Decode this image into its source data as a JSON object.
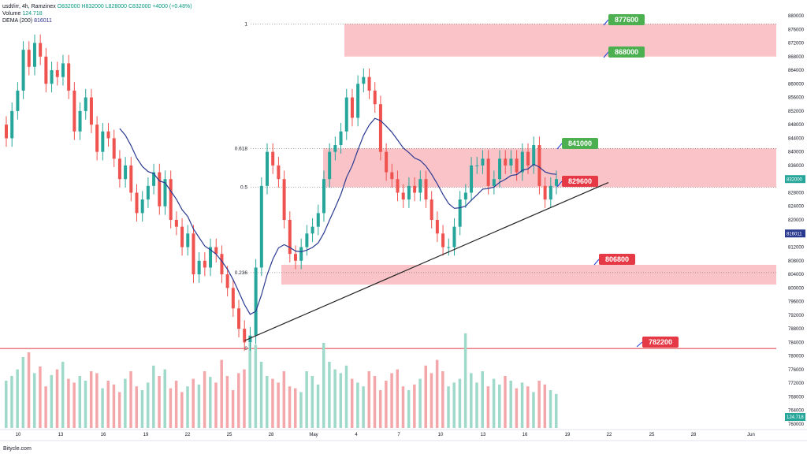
{
  "header": {
    "symbol": "usdt/irr, 4h, Ramzinex",
    "ohlc": "O832000 H832000 L828000 C832000 +4000 (+0.48%)",
    "volume_label": "Volume",
    "volume_value": "124.718",
    "dema_label": "DEMA (200)",
    "dema_value": "816011"
  },
  "watermark": "Bitycle.com",
  "colors": {
    "up": "#26a69a",
    "down": "#ef5350",
    "vol_up": "#9fd9c9",
    "vol_down": "#f4a7aa",
    "dema": "#2a3990",
    "zone": "#f9b8be",
    "level_line": "#e04f57",
    "tag_green": "#4caf50",
    "tag_red": "#e53945"
  },
  "chart_data": {
    "type": "candlestick",
    "price_axis": {
      "range": [
        756000,
        882000
      ],
      "ticks": [
        880000,
        876000,
        872000,
        868000,
        864000,
        860000,
        856000,
        852000,
        848000,
        844000,
        840000,
        836000,
        832000,
        828000,
        824000,
        820000,
        816000,
        812000,
        808000,
        804000,
        800000,
        796000,
        792000,
        788000,
        784000,
        780000,
        776000,
        772000,
        768000,
        764000,
        760000
      ],
      "labels": [
        "880000",
        "876000",
        "872000",
        "868000",
        "864000",
        "860000",
        "856000",
        "852000",
        "848000",
        "844000",
        "840000",
        "836000",
        "832000",
        "828000",
        "824000",
        "820000",
        "816000",
        "812000",
        "808000",
        "804000",
        "800000",
        "796000",
        "792000",
        "788000",
        "784000",
        "780000",
        "776000",
        "772000",
        "768000",
        "764000",
        "760000"
      ],
      "last_price": "832000",
      "dema_price": "816011",
      "volume_tag": "124.718"
    },
    "time_axis": {
      "labels": [
        "10",
        "13",
        "16",
        "19",
        "22",
        "25",
        "28",
        "May",
        "4",
        "7",
        "10",
        "13",
        "16",
        "19",
        "22",
        "25",
        "28",
        "Jun"
      ]
    },
    "fibonacci": [
      {
        "label": "1",
        "price": 877600
      },
      {
        "label": "0.618",
        "price": 841000
      },
      {
        "label": "0.5",
        "price": 829600
      },
      {
        "label": "0.236",
        "price": 804500
      },
      {
        "label": "0",
        "price": 782200
      }
    ],
    "zones": [
      {
        "top": 877600,
        "bottom": 868000
      },
      {
        "top": 841000,
        "bottom": 829600
      },
      {
        "top": 806800,
        "bottom": 801000
      }
    ],
    "horizontal_lines": [
      {
        "price": 782200
      }
    ],
    "price_tags": [
      {
        "text": "877600",
        "color": "green"
      },
      {
        "text": "868000",
        "color": "green"
      },
      {
        "text": "841000",
        "color": "green"
      },
      {
        "text": "829600",
        "color": "red"
      },
      {
        "text": "806800",
        "color": "red"
      },
      {
        "text": "782200",
        "color": "red"
      }
    ],
    "trendline": {
      "from_price": 784500,
      "to_price": 831000
    },
    "closes": [
      844000,
      852000,
      858000,
      870000,
      865000,
      872000,
      868000,
      860000,
      864000,
      862000,
      866000,
      858000,
      846000,
      852000,
      856000,
      848000,
      840000,
      846000,
      844000,
      838000,
      832000,
      836000,
      828000,
      822000,
      826000,
      830000,
      834000,
      824000,
      832000,
      820000,
      818000,
      812000,
      816000,
      804000,
      808000,
      806000,
      812000,
      810000,
      804000,
      800000,
      794000,
      788000,
      784000,
      786000,
      806000,
      830000,
      840000,
      836000,
      832000,
      820000,
      810000,
      808000,
      812000,
      816000,
      818000,
      822000,
      832000,
      840000,
      842000,
      846000,
      856000,
      850000,
      860000,
      862000,
      858000,
      854000,
      840000,
      834000,
      832000,
      828000,
      826000,
      830000,
      828000,
      832000,
      826000,
      820000,
      816000,
      812000,
      812000,
      818000,
      826000,
      828000,
      836000,
      836000,
      838000,
      830000,
      832000,
      838000,
      836000,
      838000,
      834000,
      840000,
      836000,
      842000,
      830000,
      826000,
      830000,
      832000
    ],
    "volumes": [
      50,
      55,
      62,
      75,
      80,
      58,
      65,
      44,
      56,
      62,
      70,
      52,
      48,
      55,
      50,
      60,
      58,
      42,
      50,
      46,
      38,
      52,
      60,
      44,
      40,
      48,
      66,
      55,
      62,
      42,
      50,
      38,
      44,
      52,
      46,
      60,
      54,
      48,
      72,
      55,
      40,
      58,
      62,
      90,
      88,
      70,
      55,
      52,
      48,
      60,
      44,
      42,
      38,
      60,
      55,
      46,
      90,
      70,
      62,
      58,
      66,
      52,
      48,
      44,
      60,
      55,
      40,
      50,
      58,
      62,
      44,
      40,
      46,
      52,
      66,
      58,
      72,
      60,
      44,
      48,
      52,
      100,
      58,
      48,
      60,
      44,
      52,
      46,
      55,
      50,
      42,
      48,
      44,
      38,
      50,
      46,
      40,
      36
    ]
  }
}
